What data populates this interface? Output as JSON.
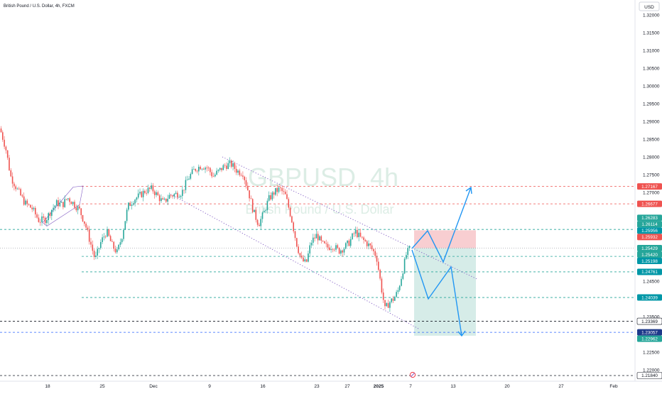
{
  "header": {
    "symbol_line": "British Pound / U.S. Dollar, 4h, FXCM",
    "currency_button": "USD"
  },
  "watermark": {
    "symbol": "GBPUSD, 4h",
    "name": "British Pound / U.S. Dollar"
  },
  "colors": {
    "up": "#26a69a",
    "down": "#ef5350",
    "level_red": "#ef5350",
    "level_teal": "#26a69a",
    "level_blue": "#2962ff",
    "arrow": "#2196f3",
    "channel": "#7e57c2",
    "stop_zone": "#f7c6c9",
    "target_zone": "#cfe9e4"
  },
  "chart_data": {
    "type": "candlestick",
    "title": "British Pound / U.S. Dollar, 4h, FXCM",
    "y_axis": {
      "range": [
        1.2172,
        1.3235
      ],
      "ticks": [
        "1.32000",
        "1.31500",
        "1.31000",
        "1.30500",
        "1.30000",
        "1.29500",
        "1.29000",
        "1.28500",
        "1.28000",
        "1.27500",
        "1.27000",
        "1.24500",
        "1.23500",
        "1.22500",
        "1.22000"
      ]
    },
    "x_axis": {
      "ticks": [
        "18",
        "25",
        "Dec",
        "9",
        "16",
        "23",
        "27",
        "2025",
        "7",
        "13",
        "20",
        "27",
        "Feb"
      ]
    },
    "grid": false,
    "price_path": [
      [
        0,
        1.288
      ],
      [
        8,
        1.2825
      ],
      [
        15,
        1.2745
      ],
      [
        25,
        1.2705
      ],
      [
        35,
        1.267
      ],
      [
        45,
        1.2655
      ],
      [
        55,
        1.262
      ],
      [
        65,
        1.2625
      ],
      [
        72,
        1.265
      ],
      [
        80,
        1.267
      ],
      [
        88,
        1.2665
      ],
      [
        95,
        1.2685
      ],
      [
        103,
        1.267
      ],
      [
        112,
        1.265
      ],
      [
        120,
        1.261
      ],
      [
        127,
        1.256
      ],
      [
        134,
        1.251
      ],
      [
        142,
        1.256
      ],
      [
        150,
        1.259
      ],
      [
        158,
        1.255
      ],
      [
        165,
        1.253
      ],
      [
        172,
        1.258
      ],
      [
        180,
        1.266
      ],
      [
        188,
        1.268
      ],
      [
        196,
        1.269
      ],
      [
        205,
        1.2705
      ],
      [
        214,
        1.271
      ],
      [
        222,
        1.269
      ],
      [
        230,
        1.267
      ],
      [
        238,
        1.269
      ],
      [
        247,
        1.2695
      ],
      [
        256,
        1.27
      ],
      [
        265,
        1.274
      ],
      [
        274,
        1.2765
      ],
      [
        283,
        1.2775
      ],
      [
        292,
        1.277
      ],
      [
        300,
        1.2745
      ],
      [
        308,
        1.276
      ],
      [
        316,
        1.2775
      ],
      [
        325,
        1.278
      ],
      [
        334,
        1.276
      ],
      [
        342,
        1.2755
      ],
      [
        350,
        1.27
      ],
      [
        357,
        1.2645
      ],
      [
        364,
        1.261
      ],
      [
        371,
        1.264
      ],
      [
        378,
        1.268
      ],
      [
        386,
        1.27
      ],
      [
        394,
        1.271
      ],
      [
        402,
        1.269
      ],
      [
        410,
        1.263
      ],
      [
        417,
        1.256
      ],
      [
        424,
        1.251
      ],
      [
        431,
        1.25
      ],
      [
        438,
        1.256
      ],
      [
        446,
        1.258
      ],
      [
        453,
        1.2555
      ],
      [
        461,
        1.2545
      ],
      [
        469,
        1.255
      ],
      [
        477,
        1.2535
      ],
      [
        485,
        1.2545
      ],
      [
        492,
        1.256
      ],
      [
        500,
        1.259
      ],
      [
        508,
        1.257
      ],
      [
        515,
        1.256
      ],
      [
        522,
        1.2545
      ],
      [
        530,
        1.252
      ],
      [
        537,
        1.243
      ],
      [
        542,
        1.237
      ],
      [
        548,
        1.239
      ],
      [
        554,
        1.24
      ],
      [
        560,
        1.242
      ],
      [
        566,
        1.247
      ],
      [
        572,
        1.2525
      ],
      [
        578,
        1.2545
      ]
    ],
    "price_levels": [
      {
        "price": 1.27167,
        "label": "1.27167",
        "kind": "red"
      },
      {
        "price": 1.26677,
        "label": "1.26677",
        "kind": "red"
      },
      {
        "price": 1.26283,
        "label": "1.26283",
        "kind": "teal-badge"
      },
      {
        "price": 1.26114,
        "label": "1.26114",
        "kind": "teal-badge"
      },
      {
        "price": 1.25956,
        "label": "1.25956",
        "kind": "teal"
      },
      {
        "price": 1.25932,
        "label": "1.25932",
        "kind": "red-badge"
      },
      {
        "price": 1.25429,
        "label": "1.25429",
        "kind": "teal-badge"
      },
      {
        "price": 1.2542,
        "label": "1.25420",
        "kind": "teal-badge"
      },
      {
        "price": 1.25198,
        "label": "1.25198",
        "kind": "teal"
      },
      {
        "price": 1.24761,
        "label": "1.24761",
        "kind": "teal"
      },
      {
        "price": 1.24039,
        "label": "1.24039",
        "kind": "teal"
      },
      {
        "price": 1.23369,
        "label": "1.23369",
        "kind": "black"
      },
      {
        "price": 1.23057,
        "label": "1.23057",
        "kind": "blue-badge"
      },
      {
        "price": 1.22962,
        "label": "1.22962",
        "kind": "teal-badge"
      },
      {
        "price": 1.2184,
        "label": "1.21840",
        "kind": "black"
      }
    ],
    "position": {
      "entry": 1.25429,
      "stop": 1.25932,
      "target": 1.22962
    }
  }
}
